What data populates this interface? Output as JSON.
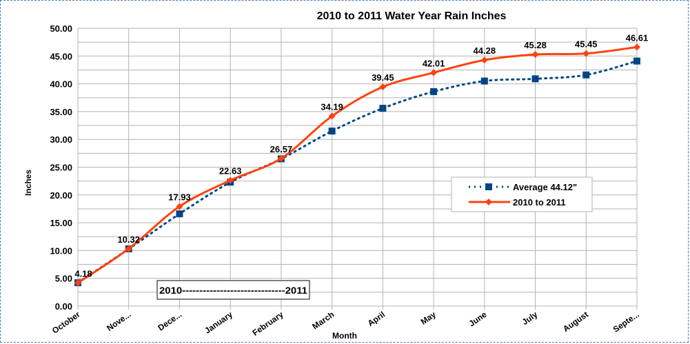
{
  "chart_data": {
    "type": "line",
    "title": "2010 to 2011 Water Year Rain Inches",
    "xlabel": "Month",
    "ylabel": "Inches",
    "ylim": [
      0,
      50
    ],
    "yticks": [
      "0.00",
      "5.00",
      "10.00",
      "15.00",
      "20.00",
      "25.00",
      "30.00",
      "35.00",
      "40.00",
      "45.00",
      "50.00"
    ],
    "categories": [
      "October",
      "Nove...",
      "Dece...",
      "January",
      "February",
      "March",
      "April",
      "May",
      "June",
      "July",
      "August",
      "Septe..."
    ],
    "grid": true,
    "legend_position": "right",
    "annotation": "2010------------------------------2011",
    "series": [
      {
        "name": "Average 44.12\"",
        "color": "#004586",
        "style": "dotted",
        "marker": "square",
        "values": [
          4.2,
          10.3,
          16.6,
          22.3,
          26.5,
          31.5,
          35.6,
          38.6,
          40.5,
          40.9,
          41.6,
          44.1
        ]
      },
      {
        "name": "2010 to 2011",
        "color": "#ff420e",
        "style": "solid-smooth",
        "marker": "diamond",
        "values": [
          4.18,
          10.32,
          17.93,
          22.63,
          26.57,
          34.19,
          39.45,
          42.01,
          44.28,
          45.28,
          45.45,
          46.61
        ],
        "labels": [
          "4.18",
          "10.32",
          "17.93",
          "22.63",
          "26.57",
          "34.19",
          "39.45",
          "42.01",
          "44.28",
          "45.28",
          "45.45",
          "46.61"
        ]
      }
    ]
  }
}
